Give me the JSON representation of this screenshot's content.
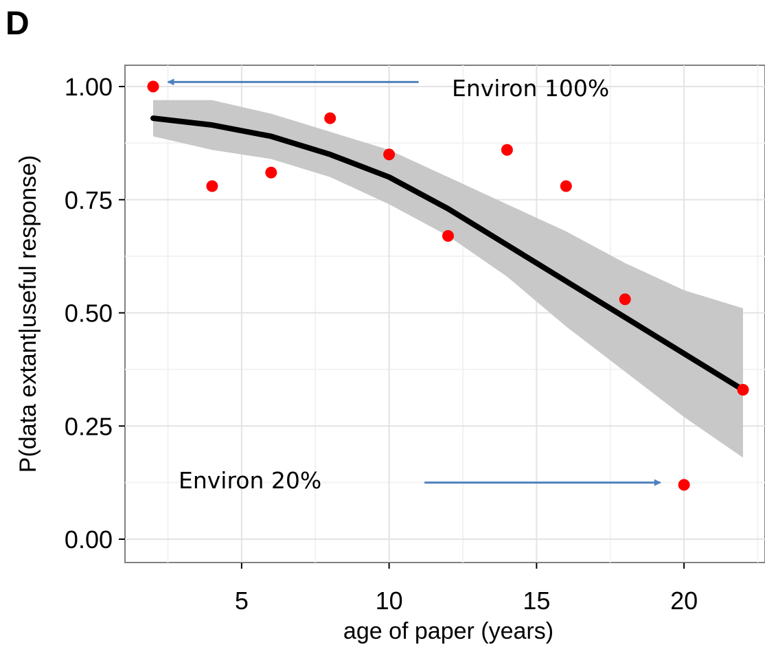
{
  "panel_label": "D",
  "chart_data": {
    "type": "scatter",
    "title": "",
    "xlabel": "age of paper (years)",
    "ylabel": "P(data extant|useful response)",
    "xlim": [
      1.0,
      23.0
    ],
    "ylim": [
      -0.05,
      1.05
    ],
    "x_ticks": [
      5,
      10,
      15,
      20
    ],
    "x_tick_labels": [
      "5",
      "10",
      "15",
      "20"
    ],
    "y_ticks": [
      0.0,
      0.25,
      0.5,
      0.75,
      1.0
    ],
    "y_tick_labels": [
      "0.00",
      "0.25",
      "0.50",
      "0.75",
      "1.00"
    ],
    "grid": true,
    "points": {
      "color": "#ff0000",
      "x": [
        2,
        4,
        6,
        8,
        10,
        12,
        14,
        16,
        18,
        20,
        22
      ],
      "y": [
        1.0,
        0.78,
        0.81,
        0.93,
        0.85,
        0.67,
        0.86,
        0.78,
        0.53,
        0.12,
        0.33
      ]
    },
    "fit_line": {
      "color": "#000000",
      "x": [
        2,
        4,
        6,
        8,
        10,
        12,
        14,
        16,
        18,
        20,
        22
      ],
      "y": [
        0.93,
        0.915,
        0.89,
        0.85,
        0.8,
        0.73,
        0.65,
        0.57,
        0.49,
        0.41,
        0.33
      ]
    },
    "confidence_band": {
      "color": "#c8c8c8",
      "x": [
        2,
        4,
        6,
        8,
        10,
        12,
        14,
        16,
        18,
        20,
        22
      ],
      "lower": [
        0.89,
        0.86,
        0.84,
        0.8,
        0.74,
        0.67,
        0.58,
        0.47,
        0.37,
        0.27,
        0.18
      ],
      "upper": [
        0.97,
        0.97,
        0.94,
        0.9,
        0.86,
        0.8,
        0.74,
        0.68,
        0.61,
        0.55,
        0.51
      ]
    },
    "annotations": [
      {
        "text": "Environ 100%",
        "arrow_from_x": 11,
        "arrow_to_x": 2.5,
        "arrow_y": 1.01,
        "arrow_color": "#4f81bd"
      },
      {
        "text": "Environ 20%",
        "arrow_from_x": 11.2,
        "arrow_to_x": 19.2,
        "arrow_y": 0.125,
        "arrow_color": "#4f81bd"
      }
    ]
  }
}
